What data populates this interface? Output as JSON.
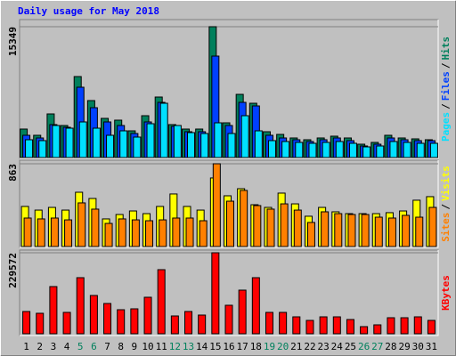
{
  "chart_data": [
    {
      "type": "bar",
      "title": "Daily usage for May 2018",
      "title_color": "#0000ff",
      "ylim": [
        0,
        15349
      ],
      "yticks": [
        15349
      ],
      "grid": true,
      "legend_separator": "/",
      "series": [
        {
          "name": "Hits",
          "color": "#00805c",
          "values": [
            3341,
            2610,
            5116,
            3758,
            9500,
            6682,
            4594,
            4385,
            3132,
            4907,
            7099,
            3863,
            3341,
            3341,
            15349,
            4072,
            7412,
            6368,
            3028,
            2714,
            2297,
            2088,
            2297,
            2506,
            2297,
            1566,
            1775,
            2610,
            2297,
            2192,
            2088
          ]
        },
        {
          "name": "Files",
          "color": "#0040ff",
          "values": [
            2610,
            2297,
            3863,
            3550,
            8248,
            5846,
            4176,
            3758,
            2819,
            4176,
            6473,
            3654,
            3028,
            3028,
            11902,
            3758,
            6473,
            6055,
            2610,
            2297,
            2088,
            1879,
            2088,
            2297,
            1984,
            1357,
            1566,
            2297,
            2088,
            1984,
            1984
          ]
        },
        {
          "name": "Pages",
          "color": "#00e0ff",
          "values": [
            2088,
            1984,
            3758,
            3445,
            4176,
            3445,
            2610,
            3132,
            2401,
            3967,
            6368,
            3758,
            2923,
            2819,
            4072,
            2819,
            4907,
            3132,
            1984,
            1879,
            1775,
            1670,
            1775,
            1879,
            1670,
            1253,
            1357,
            1879,
            1775,
            1670,
            1670
          ]
        }
      ]
    },
    {
      "type": "bar",
      "ylim": [
        0,
        863
      ],
      "yticks": [
        863
      ],
      "grid": true,
      "legend_separator": "/",
      "series": [
        {
          "name": "Visits",
          "color": "#ffff00",
          "values": [
            418,
            380,
            408,
            380,
            566,
            501,
            288,
            334,
            371,
            343,
            418,
            548,
            418,
            380,
            715,
            529,
            603,
            436,
            408,
            557,
            445,
            316,
            408,
            362,
            343,
            343,
            343,
            353,
            371,
            483,
            520
          ]
        },
        {
          "name": "Sites",
          "color": "#ff8000",
          "values": [
            297,
            288,
            297,
            278,
            455,
            390,
            241,
            288,
            278,
            269,
            278,
            297,
            297,
            269,
            863,
            473,
            585,
            427,
            390,
            445,
            380,
            251,
            362,
            343,
            334,
            334,
            306,
            297,
            325,
            306,
            408
          ]
        }
      ]
    },
    {
      "type": "bar",
      "ylim": [
        0,
        229572
      ],
      "yticks": [
        229572
      ],
      "grid": true,
      "categories": [
        "1",
        "2",
        "3",
        "4",
        "5",
        "6",
        "7",
        "8",
        "9",
        "10",
        "11",
        "12",
        "13",
        "14",
        "15",
        "16",
        "17",
        "18",
        "19",
        "20",
        "21",
        "22",
        "23",
        "24",
        "25",
        "26",
        "27",
        "28",
        "29",
        "30",
        "31"
      ],
      "weekends": [
        "5",
        "6",
        "12",
        "13",
        "19",
        "20",
        "26",
        "27"
      ],
      "weekend_color": "#00805c",
      "series": [
        {
          "name": "KBytes",
          "color": "#ff0000",
          "values": [
            63075,
            58029,
            133719,
            60552,
            158949,
            108489,
            85782,
            68121,
            70644,
            103443,
            181656,
            50460,
            63075,
            52983,
            229572,
            80736,
            123627,
            158949,
            60552,
            60552,
            47937,
            37845,
            47937,
            47937,
            40368,
            20184,
            25230,
            45414,
            45414,
            47937,
            37845
          ]
        }
      ]
    }
  ]
}
